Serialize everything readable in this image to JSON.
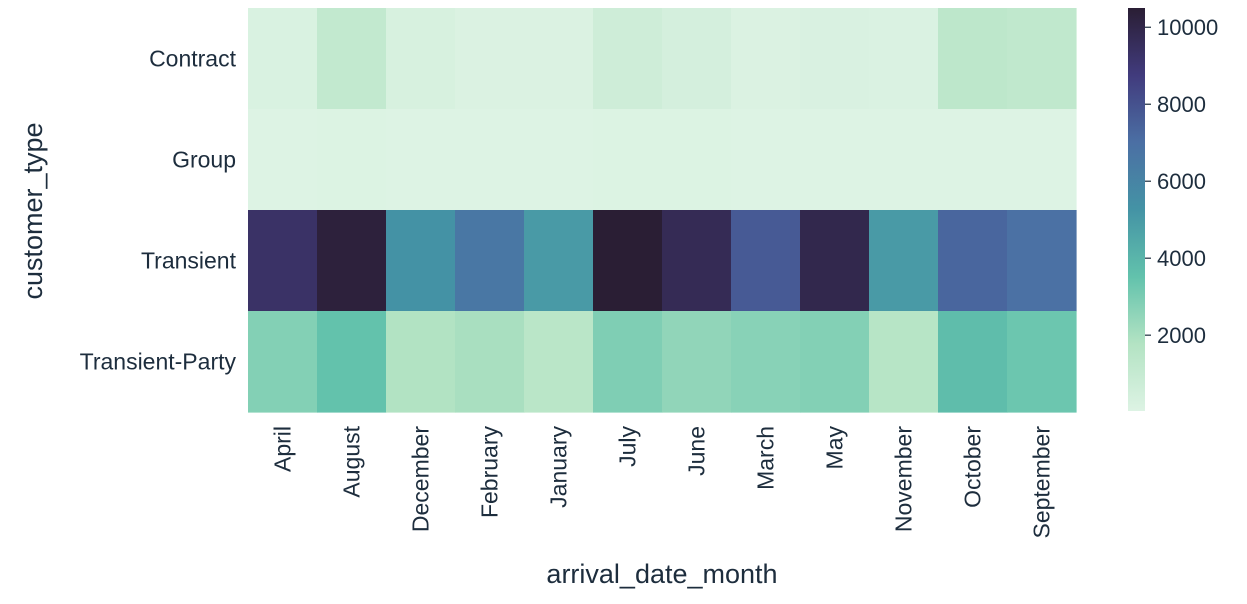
{
  "chart_data": {
    "type": "heatmap",
    "xlabel": "arrival_date_month",
    "ylabel": "customer_type",
    "x_categories": [
      "April",
      "August",
      "December",
      "February",
      "January",
      "July",
      "June",
      "March",
      "May",
      "November",
      "October",
      "September"
    ],
    "y_categories": [
      "Contract",
      "Group",
      "Transient",
      "Transient-Party"
    ],
    "values": [
      [
        180,
        1150,
        300,
        120,
        130,
        650,
        420,
        110,
        200,
        150,
        1350,
        1250
      ],
      [
        40,
        60,
        40,
        30,
        30,
        60,
        60,
        40,
        50,
        30,
        40,
        40
      ],
      [
        9300,
        10300,
        5300,
        6600,
        5000,
        10500,
        9700,
        7700,
        9900,
        5000,
        7300,
        6900
      ],
      [
        2800,
        3500,
        1800,
        2000,
        1500,
        2900,
        2500,
        2700,
        2800,
        1600,
        3700,
        3300
      ]
    ],
    "colorbar": {
      "min": 30,
      "max": 10500,
      "ticks": [
        "2000",
        "4000",
        "6000",
        "8000",
        "10000"
      ],
      "tick_values": [
        2000,
        4000,
        6000,
        8000,
        10000
      ],
      "colormap": "mako_r",
      "colors": [
        "#ddf3e4",
        "#b3e3c3",
        "#62c2ac",
        "#4493a5",
        "#4b6fa4",
        "#413b7d",
        "#2a1e34"
      ]
    },
    "grid": false,
    "legend": "colorbar-right"
  }
}
